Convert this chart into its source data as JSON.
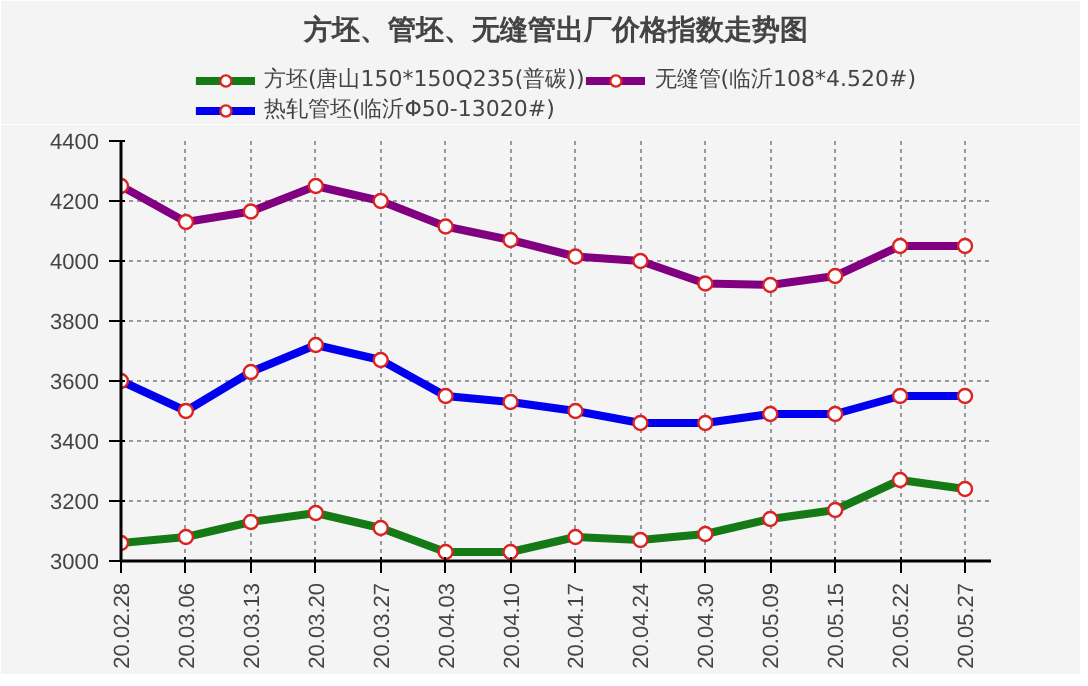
{
  "chart_data": {
    "type": "line",
    "title": "方坯、管坯、无缝管出厂价格指数走势图",
    "categories": [
      "20.02.28",
      "20.03.06",
      "20.03.13",
      "20.03.20",
      "20.03.27",
      "20.04.03",
      "20.04.10",
      "20.04.17",
      "20.04.24",
      "20.04.30",
      "20.05.09",
      "20.05.15",
      "20.05.22",
      "20.05.27"
    ],
    "series": [
      {
        "name": "方坯(唐山150*150Q235(普碳))",
        "color": "#157a15",
        "values": [
          3060,
          3080,
          3130,
          3160,
          3110,
          3030,
          3030,
          3080,
          3070,
          3090,
          3140,
          3170,
          3270,
          3240
        ]
      },
      {
        "name": "热轧管坯(临沂Φ50-13020#)",
        "color": "#0000ee",
        "values": [
          3600,
          3500,
          3630,
          3720,
          3670,
          3550,
          3530,
          3500,
          3460,
          3460,
          3490,
          3490,
          3550,
          3550
        ]
      },
      {
        "name": "无缝管(临沂108*4.520#)",
        "color": "#800080",
        "values": [
          4250,
          4130,
          4165,
          4250,
          4200,
          4115,
          4070,
          4015,
          4000,
          3925,
          3920,
          3950,
          4050,
          4050
        ]
      }
    ],
    "ylim": [
      3000,
      4400
    ],
    "yticks": [
      3000,
      3200,
      3400,
      3600,
      3800,
      4000,
      4200,
      4400
    ],
    "grid": true,
    "legend": "top",
    "marker": "circle",
    "line_style": "solid"
  }
}
